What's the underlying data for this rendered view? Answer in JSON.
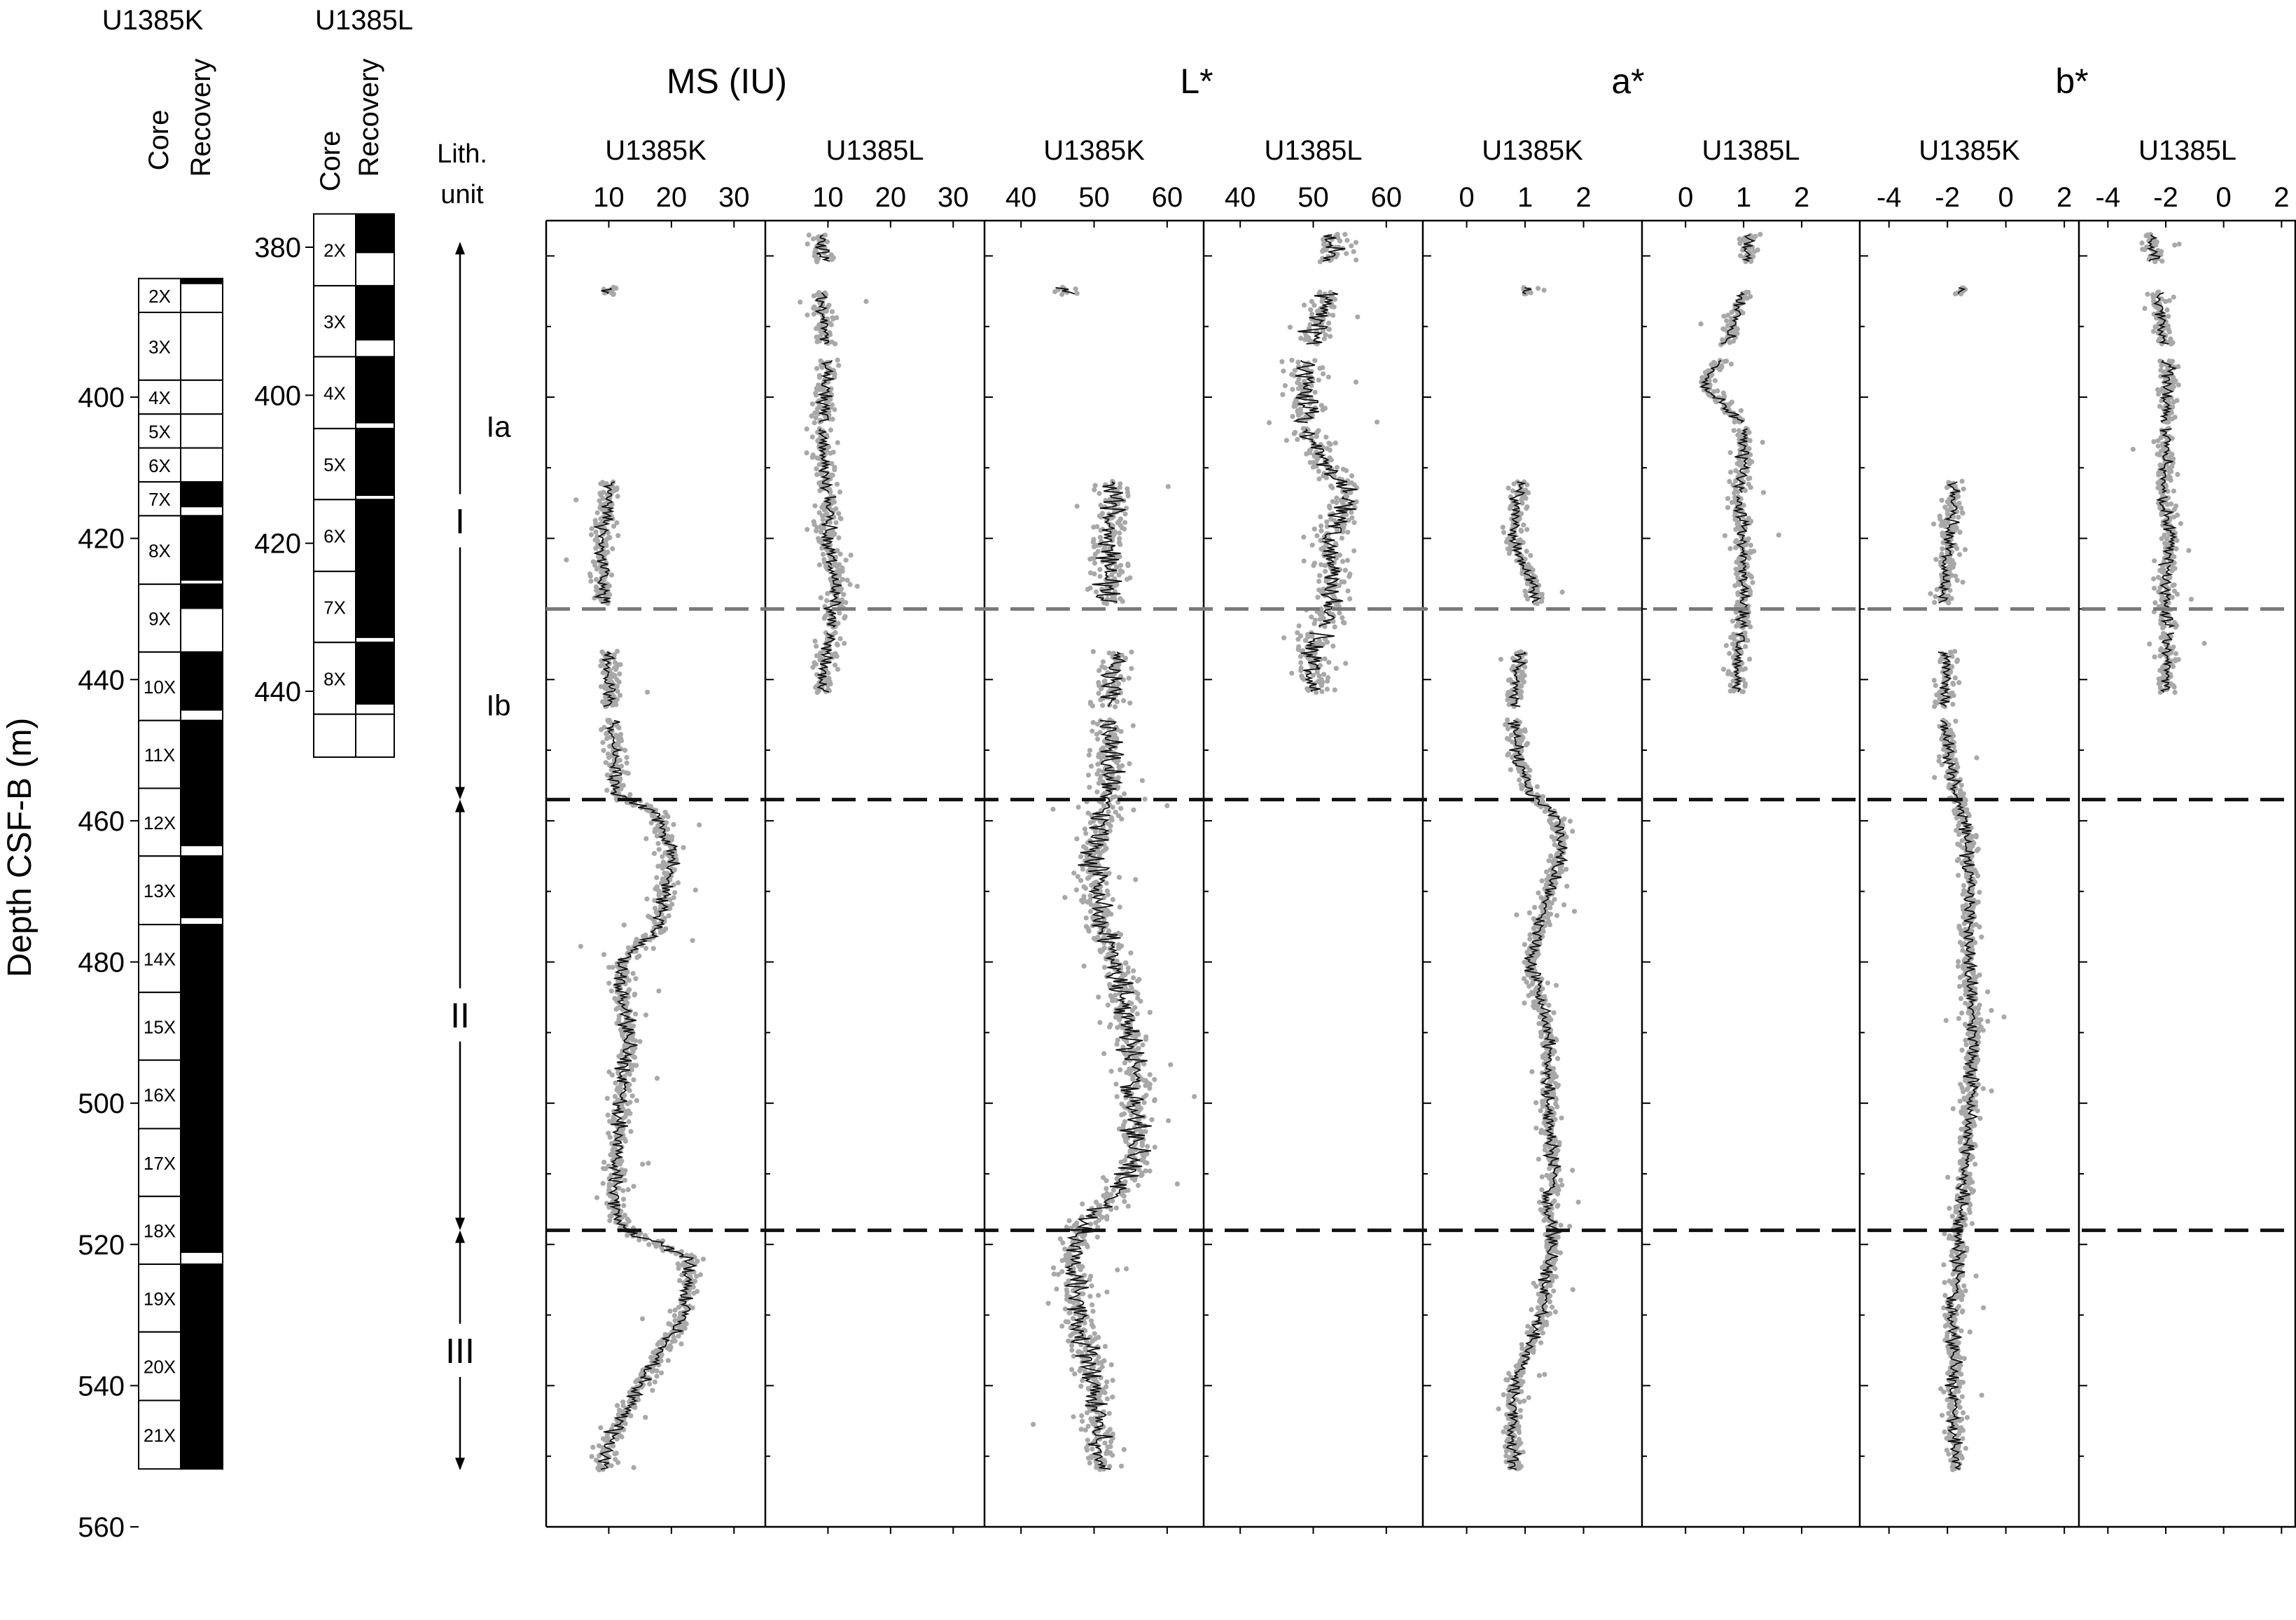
{
  "chart_data": {
    "type": "scatter",
    "ylabel": "Depth CSF-B (m)",
    "lith_header": [
      "Lith.",
      "unit"
    ],
    "recovery_header": [
      "Core",
      "Recovery"
    ],
    "main_depth_axis": {
      "range": [
        375,
        560
      ],
      "ticks": [
        400,
        420,
        440,
        460,
        480,
        500,
        520,
        540,
        560
      ]
    },
    "site_l_depth_axis": {
      "range": [
        375,
        445
      ],
      "ticks": [
        380,
        400,
        420,
        440
      ]
    },
    "holes": [
      {
        "name": "U1385K",
        "cores": [
          {
            "label": "2X",
            "top": 383.2,
            "bottom": 388.0,
            "recovered_top": 383.2,
            "recovered_bottom": 384.0
          },
          {
            "label": "3X",
            "top": 388.0,
            "bottom": 397.6,
            "recovered_top": 388.0,
            "recovered_bottom": 388.0
          },
          {
            "label": "4X",
            "top": 397.6,
            "bottom": 402.4,
            "recovered_top": 397.6,
            "recovered_bottom": 397.6
          },
          {
            "label": "5X",
            "top": 402.4,
            "bottom": 407.2,
            "recovered_top": 402.4,
            "recovered_bottom": 402.4
          },
          {
            "label": "6X",
            "top": 407.2,
            "bottom": 412.0,
            "recovered_top": 407.2,
            "recovered_bottom": 407.2
          },
          {
            "label": "7X",
            "top": 412.0,
            "bottom": 416.8,
            "recovered_top": 412.0,
            "recovered_bottom": 415.6
          },
          {
            "label": "8X",
            "top": 416.8,
            "bottom": 426.5,
            "recovered_top": 416.8,
            "recovered_bottom": 426.0
          },
          {
            "label": "9X",
            "top": 426.5,
            "bottom": 436.1,
            "recovered_top": 426.5,
            "recovered_bottom": 430.0
          },
          {
            "label": "10X",
            "top": 436.1,
            "bottom": 445.8,
            "recovered_top": 436.1,
            "recovered_bottom": 444.4
          },
          {
            "label": "11X",
            "top": 445.8,
            "bottom": 455.4,
            "recovered_top": 445.8,
            "recovered_bottom": 455.4
          },
          {
            "label": "12X",
            "top": 455.4,
            "bottom": 465.0,
            "recovered_top": 455.4,
            "recovered_bottom": 463.6
          },
          {
            "label": "13X",
            "top": 465.0,
            "bottom": 474.7,
            "recovered_top": 465.0,
            "recovered_bottom": 473.8
          },
          {
            "label": "14X",
            "top": 474.7,
            "bottom": 484.3,
            "recovered_top": 474.7,
            "recovered_bottom": 484.3
          },
          {
            "label": "15X",
            "top": 484.3,
            "bottom": 493.9,
            "recovered_top": 484.3,
            "recovered_bottom": 493.9
          },
          {
            "label": "16X",
            "top": 493.9,
            "bottom": 503.6,
            "recovered_top": 493.9,
            "recovered_bottom": 503.6
          },
          {
            "label": "17X",
            "top": 503.6,
            "bottom": 513.2,
            "recovered_top": 503.6,
            "recovered_bottom": 513.2
          },
          {
            "label": "18X",
            "top": 513.2,
            "bottom": 522.8,
            "recovered_top": 513.2,
            "recovered_bottom": 521.2
          },
          {
            "label": "19X",
            "top": 522.8,
            "bottom": 532.4,
            "recovered_top": 522.8,
            "recovered_bottom": 532.4
          },
          {
            "label": "20X",
            "top": 532.4,
            "bottom": 542.1,
            "recovered_top": 532.4,
            "recovered_bottom": 542.1
          },
          {
            "label": "21X",
            "top": 542.1,
            "bottom": 551.8,
            "recovered_top": 542.1,
            "recovered_bottom": 551.8
          }
        ]
      },
      {
        "name": "U1385L",
        "cores": [
          {
            "label": "2X",
            "top": 375.5,
            "bottom": 385.2,
            "recovered_top": 375.5,
            "recovered_bottom": 380.8
          },
          {
            "label": "3X",
            "top": 385.2,
            "bottom": 394.8,
            "recovered_top": 385.2,
            "recovered_bottom": 392.6
          },
          {
            "label": "4X",
            "top": 394.8,
            "bottom": 404.5,
            "recovered_top": 394.8,
            "recovered_bottom": 403.8
          },
          {
            "label": "5X",
            "top": 404.5,
            "bottom": 414.1,
            "recovered_top": 404.5,
            "recovered_bottom": 413.6
          },
          {
            "label": "6X",
            "top": 414.1,
            "bottom": 423.8,
            "recovered_top": 414.1,
            "recovered_bottom": 423.8
          },
          {
            "label": "7X",
            "top": 423.8,
            "bottom": 433.4,
            "recovered_top": 423.8,
            "recovered_bottom": 432.8
          },
          {
            "label": "8X",
            "top": 433.4,
            "bottom": 443.1,
            "recovered_top": 433.4,
            "recovered_bottom": 441.8
          },
          {
            "label": "",
            "top": 443.1,
            "bottom": 448.9,
            "recovered_top": 443.1,
            "recovered_bottom": 443.1
          }
        ]
      }
    ],
    "lith_units": [
      {
        "label": "I",
        "top": 378.0,
        "bottom": 457.0
      },
      {
        "label": "Ia",
        "top": 378.0,
        "bottom": 430.0
      },
      {
        "label": "Ib",
        "top": 430.0,
        "bottom": 457.0
      },
      {
        "label": "II",
        "top": 457.0,
        "bottom": 518.0
      },
      {
        "label": "III",
        "top": 518.0,
        "bottom": 552.0
      }
    ],
    "boundaries": [
      {
        "depth": 430.0,
        "style": "grey"
      },
      {
        "depth": 457.0,
        "style": "black"
      },
      {
        "depth": 518.0,
        "style": "black"
      }
    ],
    "groups": [
      {
        "title": "MS (IU)",
        "xlim": [
          0,
          35
        ],
        "ticks": [
          10,
          20,
          30
        ]
      },
      {
        "title": "L*",
        "xlim": [
          35,
          65
        ],
        "ticks": [
          40,
          50,
          60
        ]
      },
      {
        "title": "a*",
        "xlim": [
          -0.75,
          3
        ],
        "ticks": [
          0,
          1,
          2
        ]
      },
      {
        "title": "b*",
        "xlim": [
          -5,
          2.5
        ],
        "ticks": [
          -4,
          -2,
          0,
          2
        ]
      }
    ],
    "panels": [
      {
        "hole": "U1385K",
        "variable": "MS (IU)",
        "xlim": [
          0,
          35
        ],
        "intervals": [
          [
            384.5,
            385.5
          ],
          [
            412.0,
            429.2
          ],
          [
            436.1,
            444.0
          ],
          [
            445.8,
            552.0
          ]
        ],
        "trend_depth": [
          385,
          413,
          420,
          428,
          437,
          445,
          450,
          456,
          459,
          465,
          470,
          475,
          480,
          490,
          500,
          510,
          515,
          518,
          522,
          530,
          540,
          548,
          552
        ],
        "trend": [
          10,
          10,
          9,
          9,
          10,
          10,
          11,
          11,
          18,
          20,
          19,
          18,
          12,
          13,
          12,
          11,
          11,
          13,
          23,
          22,
          15,
          10,
          9
        ],
        "scatter": 2.5
      },
      {
        "hole": "U1385L",
        "variable": "MS (IU)",
        "xlim": [
          0,
          35
        ],
        "intervals": [
          [
            377.0,
            380.8
          ],
          [
            385.2,
            392.6
          ],
          [
            394.8,
            403.8
          ],
          [
            404.5,
            413.6
          ],
          [
            414.1,
            423.8
          ],
          [
            423.8,
            432.8
          ],
          [
            433.4,
            441.8
          ]
        ],
        "trend_depth": [
          377,
          385,
          395,
          404,
          414,
          420,
          425,
          430,
          436,
          441.8
        ],
        "trend": [
          9,
          9,
          10,
          9,
          10,
          10,
          11,
          11,
          10,
          9
        ],
        "scatter": 2.5
      },
      {
        "hole": "U1385K",
        "variable": "L*",
        "xlim": [
          35,
          65
        ],
        "intervals": [
          [
            384.5,
            385.5
          ],
          [
            412.0,
            429.2
          ],
          [
            436.1,
            444.0
          ],
          [
            445.8,
            552.0
          ]
        ],
        "trend_depth": [
          385,
          413,
          420,
          428,
          437,
          445,
          456,
          465,
          475,
          480,
          490,
          500,
          510,
          515,
          518,
          522,
          530,
          540,
          552
        ],
        "trend": [
          46,
          53,
          52,
          52,
          53,
          52,
          52,
          50,
          51,
          53,
          55,
          56,
          55,
          51,
          48,
          47,
          48,
          50,
          51
        ],
        "scatter": 3.5
      },
      {
        "hole": "U1385L",
        "variable": "L*",
        "xlim": [
          35,
          65
        ],
        "intervals": [
          [
            377.0,
            380.8
          ],
          [
            385.2,
            392.6
          ],
          [
            394.8,
            403.8
          ],
          [
            404.5,
            413.6
          ],
          [
            414.1,
            423.8
          ],
          [
            423.8,
            432.8
          ],
          [
            433.4,
            441.8
          ]
        ],
        "trend_depth": [
          377,
          385,
          395,
          404,
          410,
          414,
          420,
          425,
          430,
          436,
          441.8
        ],
        "trend": [
          53,
          52,
          49,
          49,
          52,
          55,
          52,
          53,
          52,
          50,
          50
        ],
        "scatter": 3.5
      },
      {
        "hole": "U1385K",
        "variable": "a*",
        "xlim": [
          -0.75,
          3
        ],
        "intervals": [
          [
            384.5,
            385.5
          ],
          [
            412.0,
            429.2
          ],
          [
            436.1,
            444.0
          ],
          [
            445.8,
            552.0
          ]
        ],
        "trend_depth": [
          385,
          413,
          420,
          428,
          437,
          445,
          452,
          456,
          460,
          465,
          470,
          480,
          490,
          500,
          510,
          515,
          518,
          522,
          530,
          540,
          552
        ],
        "trend": [
          1.0,
          0.9,
          0.8,
          1.2,
          0.9,
          0.8,
          0.9,
          1.1,
          1.6,
          1.6,
          1.4,
          1.1,
          1.4,
          1.4,
          1.5,
          1.4,
          1.5,
          1.4,
          1.3,
          0.8,
          0.8
        ],
        "scatter": 0.22
      },
      {
        "hole": "U1385L",
        "variable": "a*",
        "xlim": [
          -0.75,
          3
        ],
        "intervals": [
          [
            377.0,
            380.8
          ],
          [
            385.2,
            392.6
          ],
          [
            394.8,
            403.8
          ],
          [
            404.5,
            413.6
          ],
          [
            414.1,
            423.8
          ],
          [
            423.8,
            432.8
          ],
          [
            433.4,
            441.8
          ]
        ],
        "trend_depth": [
          377,
          385,
          395,
          398,
          404,
          410,
          414,
          420,
          425,
          430,
          436,
          441.8
        ],
        "trend": [
          1.1,
          1.0,
          0.6,
          0.3,
          1.0,
          1.0,
          0.9,
          1.0,
          1.0,
          1.0,
          0.9,
          0.9
        ],
        "scatter": 0.22
      },
      {
        "hole": "U1385K",
        "variable": "b*",
        "xlim": [
          -5,
          2.5
        ],
        "intervals": [
          [
            384.5,
            385.5
          ],
          [
            412.0,
            429.2
          ],
          [
            436.1,
            444.0
          ],
          [
            445.8,
            552.0
          ]
        ],
        "trend_depth": [
          385,
          413,
          420,
          428,
          437,
          445,
          452,
          456,
          460,
          465,
          470,
          480,
          490,
          500,
          510,
          515,
          518,
          522,
          530,
          540,
          552
        ],
        "trend": [
          -1.5,
          -1.8,
          -1.9,
          -2.2,
          -2.0,
          -2.1,
          -1.9,
          -1.7,
          -1.4,
          -1.3,
          -1.2,
          -1.3,
          -1.1,
          -1.2,
          -1.4,
          -1.5,
          -1.6,
          -1.6,
          -1.8,
          -1.8,
          -1.7
        ],
        "scatter": 0.45
      },
      {
        "hole": "U1385L",
        "variable": "b*",
        "xlim": [
          -5,
          2.5
        ],
        "intervals": [
          [
            377.0,
            380.8
          ],
          [
            385.2,
            392.6
          ],
          [
            394.8,
            403.8
          ],
          [
            404.5,
            413.6
          ],
          [
            414.1,
            423.8
          ],
          [
            423.8,
            432.8
          ],
          [
            433.4,
            441.8
          ]
        ],
        "trend_depth": [
          377,
          385,
          395,
          404,
          410,
          414,
          420,
          425,
          430,
          436,
          441.8
        ],
        "trend": [
          -2.5,
          -2.3,
          -1.9,
          -2.0,
          -2.0,
          -2.1,
          -1.8,
          -2.0,
          -2.0,
          -1.9,
          -2.0
        ],
        "scatter": 0.45
      }
    ]
  }
}
